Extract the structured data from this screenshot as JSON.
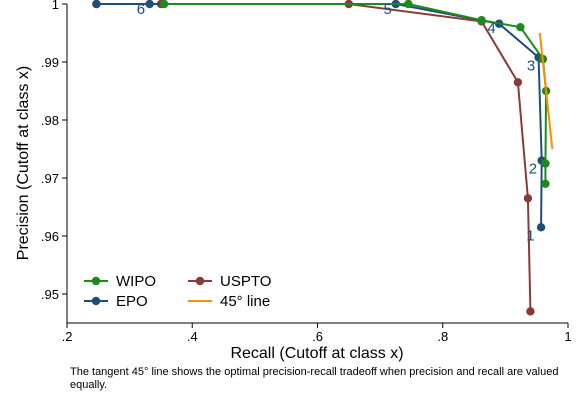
{
  "chart_data": {
    "type": "line",
    "xlabel": "Recall (Cutoff at class x)",
    "ylabel": "Precision (Cutoff at class x)",
    "xlim": [
      0.2,
      1.0
    ],
    "ylim": [
      0.945,
      1.0
    ],
    "x_ticks": [
      0.2,
      0.4,
      0.6,
      0.8,
      1.0
    ],
    "x_tick_labels": [
      ".2",
      ".4",
      ".6",
      ".8",
      "1"
    ],
    "y_ticks": [
      0.95,
      0.96,
      0.97,
      0.98,
      0.99,
      1.0
    ],
    "y_tick_labels": [
      ".95",
      ".96",
      ".97",
      ".98",
      ".99",
      "1"
    ],
    "grid": false,
    "legend_position": "bottom-left",
    "series": [
      {
        "name": "WIPO",
        "color": "#1e8a1e",
        "x": [
          0.355,
          0.745,
          0.862,
          0.924,
          0.96,
          0.965,
          0.964,
          0.964
        ],
        "y": [
          1.0,
          1.0,
          0.9972,
          0.996,
          0.9905,
          0.985,
          0.9725,
          0.969
        ]
      },
      {
        "name": "EPO",
        "color": "#1f4e79",
        "x": [
          0.247,
          0.332,
          0.725,
          0.89,
          0.953,
          0.958,
          0.957
        ],
        "y": [
          1.0,
          1.0,
          1.0,
          0.9966,
          0.9908,
          0.973,
          0.9615
        ]
      },
      {
        "name": "USPTO",
        "color": "#8b3a3a",
        "x": [
          0.247,
          0.35,
          0.65,
          0.862,
          0.92,
          0.936,
          0.94
        ],
        "y": [
          1.0,
          1.0,
          1.0,
          0.997,
          0.9865,
          0.9665,
          0.947
        ]
      },
      {
        "name": "45° line",
        "color": "#ff8c00",
        "x": [
          0.955,
          0.975
        ],
        "y": [
          0.995,
          0.975
        ]
      }
    ],
    "annotations": [
      {
        "text": "6",
        "x": 0.318,
        "y": 0.9983
      },
      {
        "text": "5",
        "x": 0.712,
        "y": 0.9983
      },
      {
        "text": "4",
        "x": 0.878,
        "y": 0.995
      },
      {
        "text": "3",
        "x": 0.941,
        "y": 0.9885
      },
      {
        "text": "2",
        "x": 0.944,
        "y": 0.9708
      },
      {
        "text": "1",
        "x": 0.94,
        "y": 0.9592
      }
    ],
    "note": "The tangent 45° line shows the optimal precision-recall tradeoff when precision and recall are valued equally."
  }
}
